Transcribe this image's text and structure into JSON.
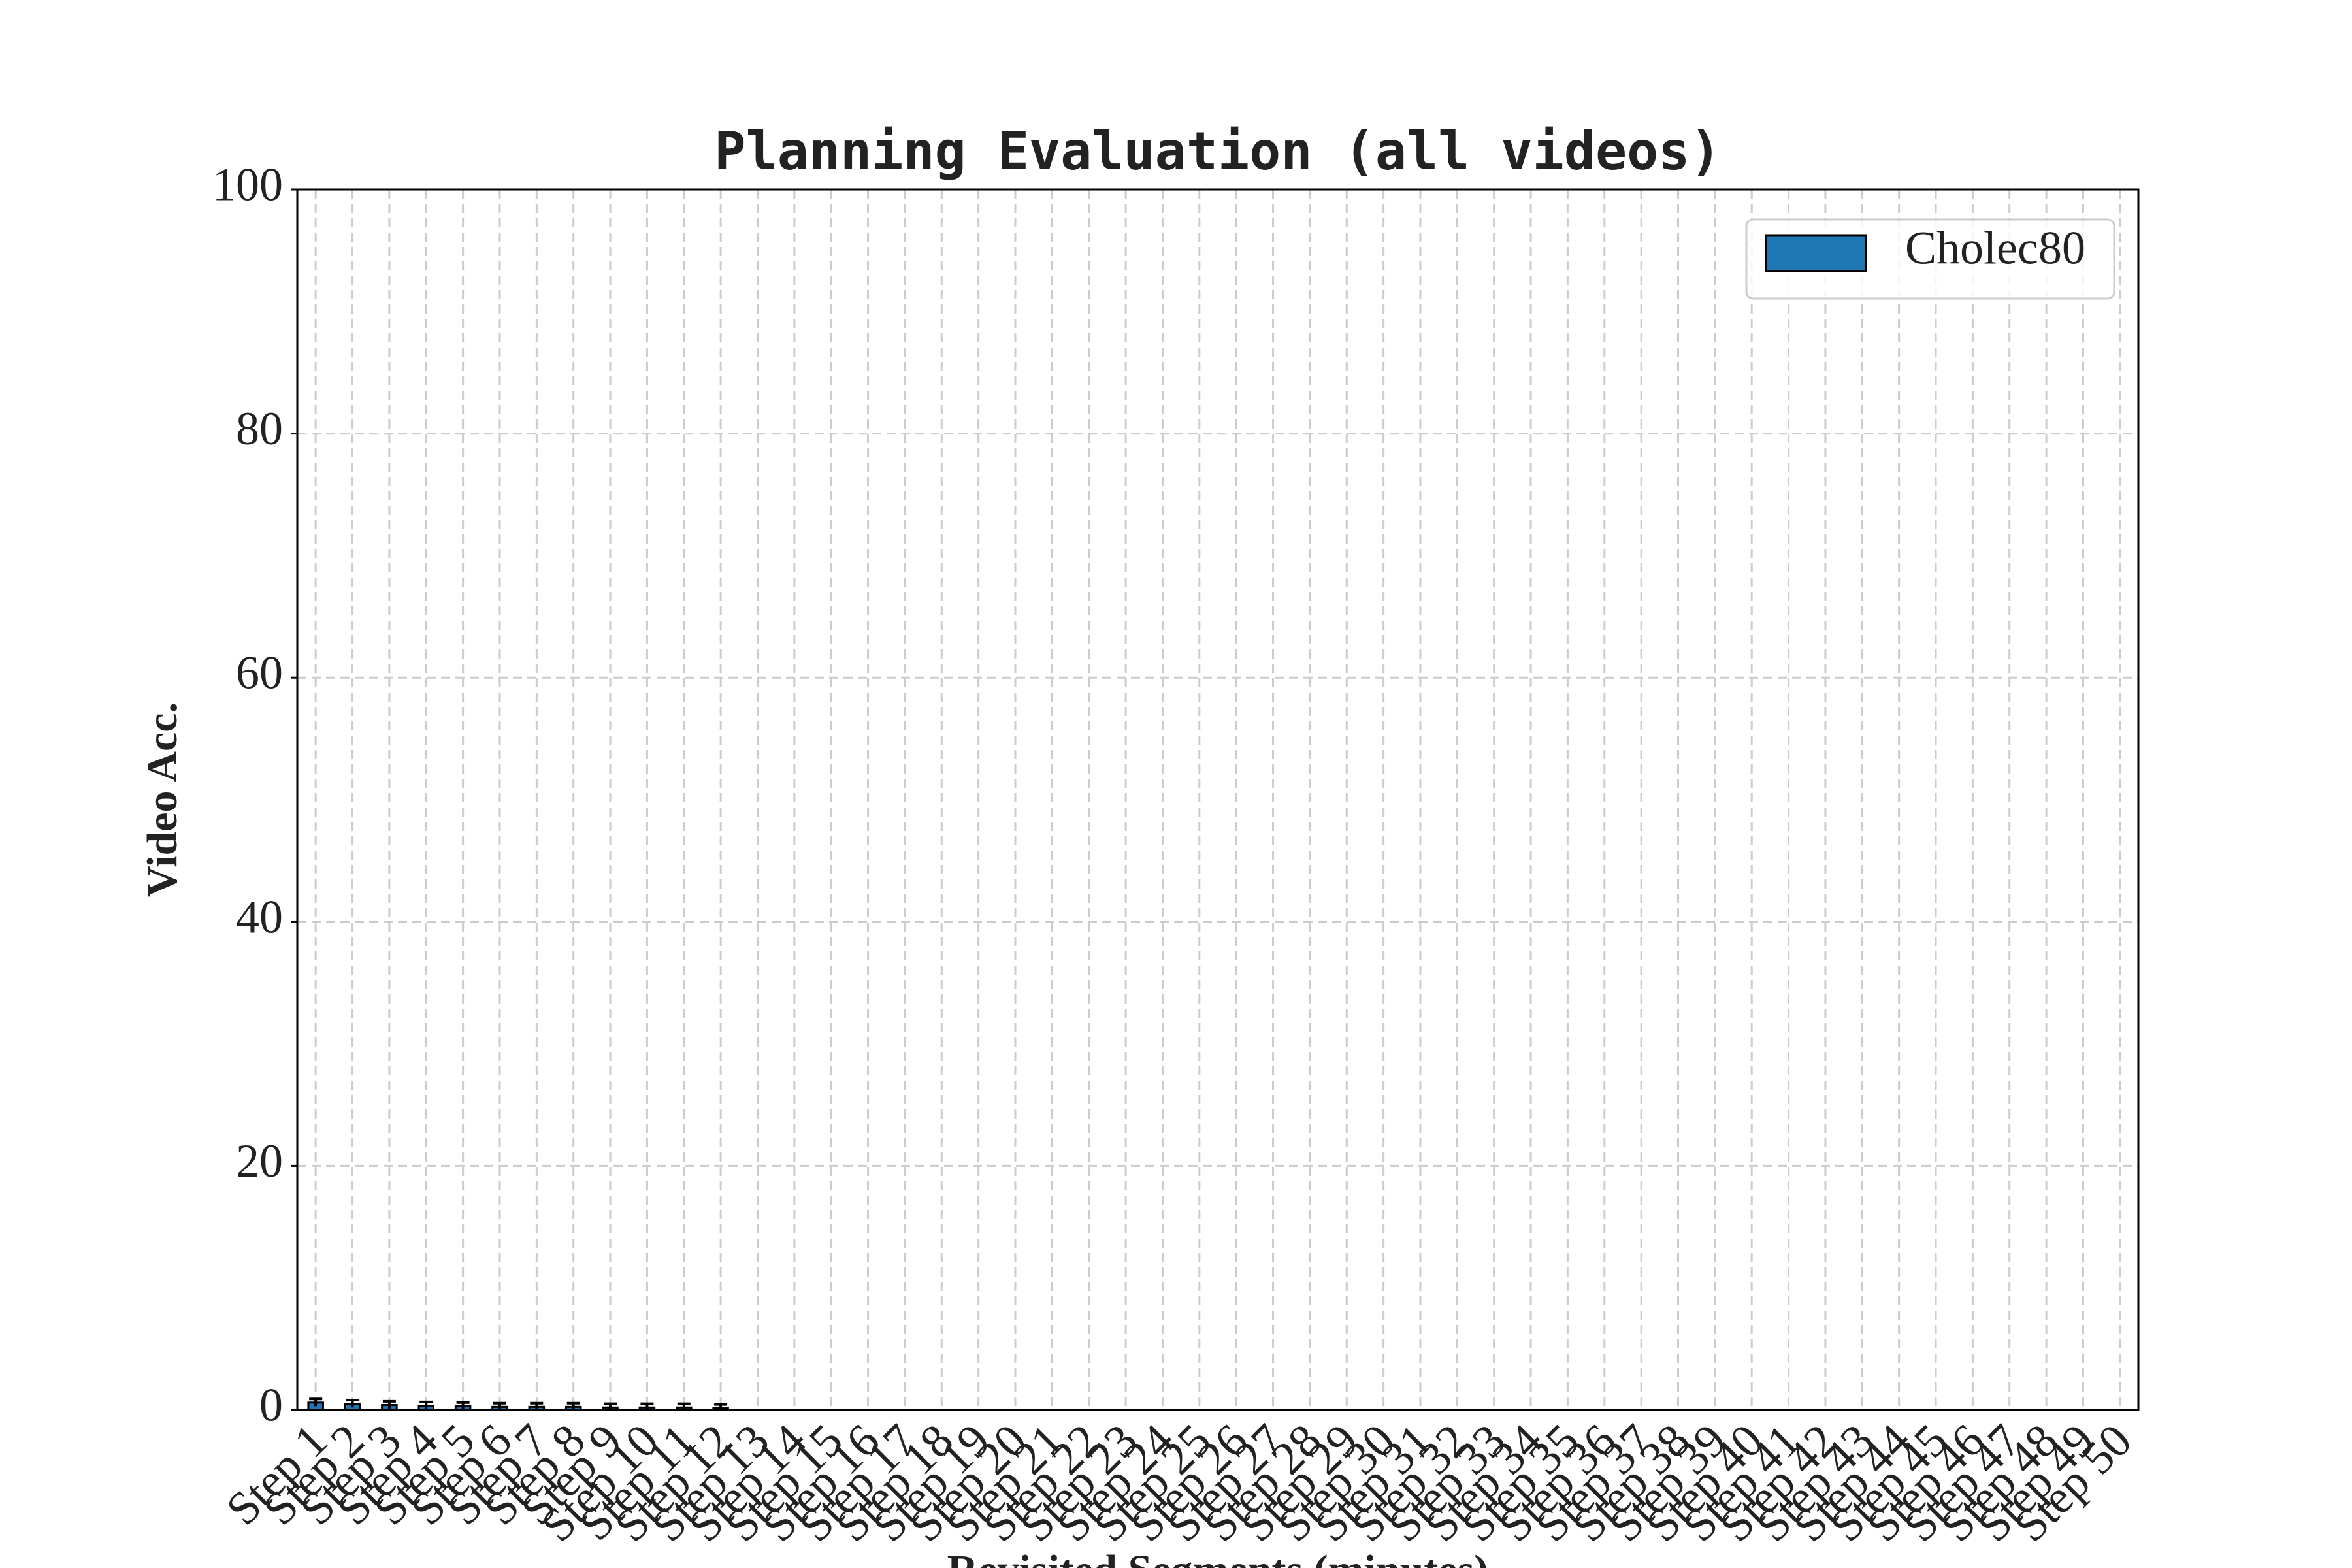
{
  "chart_data": {
    "type": "bar",
    "title": "Planning Evaluation (all videos)",
    "x_label": "Revisited Segments (minutes)",
    "y_label": "Video Acc.",
    "categories": [
      "Step 1",
      "Step 2",
      "Step 3",
      "Step 4",
      "Step 5",
      "Step 6",
      "Step 7",
      "Step 8",
      "Step 9",
      "Step 10",
      "Step 11",
      "Step 12",
      "Step 13",
      "Step 14",
      "Step 15",
      "Step 16",
      "Step 17",
      "Step 18",
      "Step 19",
      "Step 20",
      "Step 21",
      "Step 22",
      "Step 23",
      "Step 24",
      "Step 25",
      "Step 26",
      "Step 27",
      "Step 28",
      "Step 29",
      "Step 30",
      "Step 31",
      "Step 32",
      "Step 33",
      "Step 34",
      "Step 35",
      "Step 36",
      "Step 37",
      "Step 38",
      "Step 39",
      "Step 40",
      "Step 41",
      "Step 42",
      "Step 43",
      "Step 44",
      "Step 45",
      "Step 46",
      "Step 47",
      "Step 48",
      "Step 49",
      "Step 50"
    ],
    "series": [
      {
        "name": "Cholec80",
        "color": "#1f77b4",
        "values": [
          0.6,
          0.5,
          0.4,
          0.35,
          0.3,
          0.25,
          0.25,
          0.25,
          0.2,
          0.2,
          0.2,
          0.15,
          null,
          null,
          null,
          null,
          null,
          null,
          null,
          null,
          null,
          null,
          null,
          null,
          null,
          null,
          null,
          null,
          null,
          null,
          null,
          null,
          null,
          null,
          null,
          null,
          null,
          null,
          null,
          null,
          null,
          null,
          null,
          null,
          null,
          null,
          null,
          null,
          null,
          null
        ],
        "errors": [
          0.3,
          0.3,
          0.3,
          0.3,
          0.3,
          0.3,
          0.3,
          0.3,
          0.3,
          0.3,
          0.3,
          0.3,
          null,
          null,
          null,
          null,
          null,
          null,
          null,
          null,
          null,
          null,
          null,
          null,
          null,
          null,
          null,
          null,
          null,
          null,
          null,
          null,
          null,
          null,
          null,
          null,
          null,
          null,
          null,
          null,
          null,
          null,
          null,
          null,
          null,
          null,
          null,
          null,
          null,
          null
        ]
      }
    ],
    "ylim": [
      0,
      100
    ],
    "yticks": [
      0,
      20,
      40,
      60,
      80,
      100
    ],
    "grid": true,
    "legend": "upper right"
  }
}
